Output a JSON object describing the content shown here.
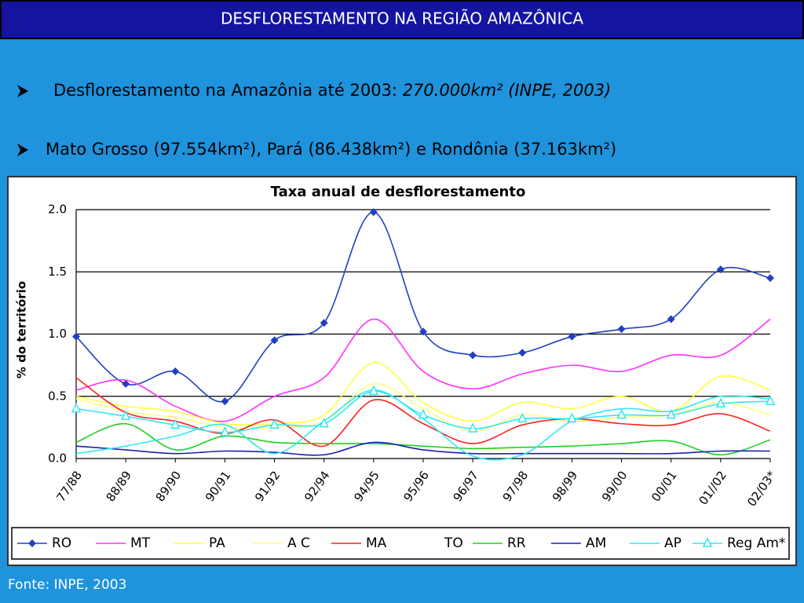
{
  "header": {
    "title": "DESFLORESTAMENTO NA REGIÃO AMAZÔNICA"
  },
  "bullets": [
    {
      "text": "Desflorestamento na Amazônia até 2003: ",
      "emphasis": "270.000km² (INPE, 2003)"
    },
    {
      "text": "Mato Grosso (97.554km²), Pará (86.438km²) e Rondônia (37.163km²)"
    }
  ],
  "footer": {
    "source": "Fonte: INPE, 2003"
  },
  "chart_data": {
    "type": "line",
    "title": "Taxa anual de desflorestamento",
    "y_label": "%  do território",
    "categories": [
      "77/88",
      "88/89",
      "89/90",
      "90/91",
      "91/92",
      "92/94",
      "94/95",
      "95/96",
      "96/97",
      "97/98",
      "98/99",
      "99/00",
      "00/01",
      "01//02",
      "02/03*"
    ],
    "ylim": [
      0,
      2
    ],
    "yticks": [
      {
        "value": 0,
        "label": "0.0"
      },
      {
        "value": 0.5,
        "label": "0.5"
      },
      {
        "value": 1,
        "label": "1.0"
      },
      {
        "value": 1.5,
        "label": "1.5"
      },
      {
        "value": 2,
        "label": "2.0"
      }
    ],
    "grid": true,
    "smooth": true,
    "legend": "bottom",
    "series": [
      {
        "name": "RO",
        "color": "#2040c0",
        "marker": "diamond",
        "values": [
          0.98,
          0.6,
          0.7,
          0.46,
          0.95,
          1.09,
          1.98,
          1.02,
          0.83,
          0.85,
          0.98,
          1.04,
          1.12,
          1.52,
          1.45
        ]
      },
      {
        "name": "MT",
        "color": "#ff30ff",
        "values": [
          0.55,
          0.63,
          0.42,
          0.3,
          0.5,
          0.65,
          1.12,
          0.7,
          0.56,
          0.68,
          0.75,
          0.7,
          0.83,
          0.83,
          1.12
        ]
      },
      {
        "name": "PA",
        "color": "#ffff40",
        "values": [
          0.5,
          0.42,
          0.38,
          0.28,
          0.28,
          0.35,
          0.77,
          0.45,
          0.3,
          0.45,
          0.4,
          0.5,
          0.38,
          0.66,
          0.55
        ]
      },
      {
        "name": "A C",
        "color": "#ffff80",
        "values": [
          0.48,
          0.38,
          0.33,
          0.25,
          0.25,
          0.3,
          0.6,
          0.4,
          0.22,
          0.35,
          0.3,
          0.33,
          0.35,
          0.45,
          0.35
        ]
      },
      {
        "name": "MA",
        "color": "#ff2020",
        "values": [
          0.65,
          0.37,
          0.3,
          0.2,
          0.31,
          0.1,
          0.47,
          0.28,
          0.12,
          0.27,
          0.32,
          0.28,
          0.27,
          0.36,
          0.22
        ]
      },
      {
        "name": "TO",
        "color": "#ffffff",
        "values": [
          null,
          null,
          null,
          null,
          null,
          null,
          null,
          null,
          null,
          null,
          null,
          null,
          null,
          null,
          null
        ]
      },
      {
        "name": "RR",
        "color": "#20d020",
        "values": [
          0.13,
          0.28,
          0.07,
          0.18,
          0.13,
          0.12,
          0.12,
          0.1,
          0.08,
          0.09,
          0.1,
          0.12,
          0.14,
          0.03,
          0.15
        ]
      },
      {
        "name": "AM",
        "color": "#2020b0",
        "values": [
          0.1,
          0.07,
          0.04,
          0.06,
          0.05,
          0.03,
          0.13,
          0.07,
          0.04,
          0.04,
          0.04,
          0.04,
          0.04,
          0.06,
          0.06
        ]
      },
      {
        "name": "AP",
        "color": "#30e8f0",
        "values": [
          0.04,
          0.1,
          0.18,
          0.27,
          0.04,
          0.3,
          0.55,
          0.32,
          0.02,
          0.03,
          0.3,
          0.4,
          0.38,
          0.5,
          0.48
        ]
      },
      {
        "name": "Reg Am*",
        "color": "#30e8f0",
        "marker": "triangle",
        "values": [
          0.4,
          0.34,
          0.27,
          0.21,
          0.27,
          0.28,
          0.54,
          0.35,
          0.24,
          0.32,
          0.32,
          0.35,
          0.35,
          0.44,
          0.46
        ]
      }
    ]
  }
}
